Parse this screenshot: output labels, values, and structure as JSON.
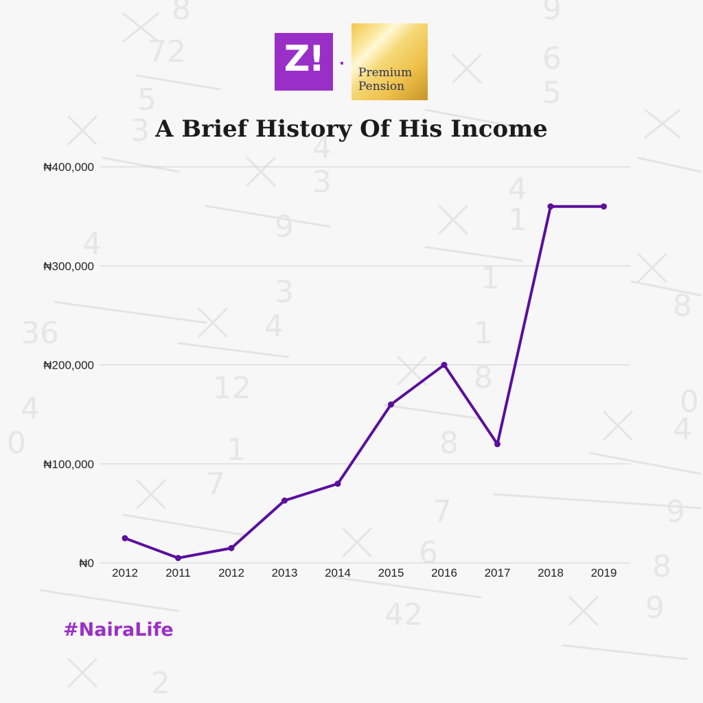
{
  "logos": {
    "zi_text": "Z!",
    "pp_line1": "Premium",
    "pp_line2": "Pension"
  },
  "hashtag": "#NairaLife",
  "colors": {
    "line": "#5a0f9e",
    "brand": "#9a2fc7",
    "grid": "#cfcfcf"
  },
  "chart_data": {
    "type": "line",
    "title": "A Brief History Of His Income",
    "xlabel": "",
    "ylabel": "",
    "categories": [
      "2012",
      "2011",
      "2012",
      "2013",
      "2014",
      "2015",
      "2016",
      "2017",
      "2018",
      "2019"
    ],
    "series": [
      {
        "values": [
          25000,
          5000,
          15000,
          63000,
          80000,
          160000,
          200000,
          120000,
          360000,
          360000
        ]
      }
    ],
    "ylim": [
      0,
      400000
    ],
    "yticks": [
      0,
      100000,
      200000,
      300000,
      400000
    ],
    "ytick_labels": [
      "₦0",
      "₦100,000",
      "₦200,000",
      "₦300,000",
      "₦400,000"
    ],
    "grid": true,
    "markers": true
  }
}
